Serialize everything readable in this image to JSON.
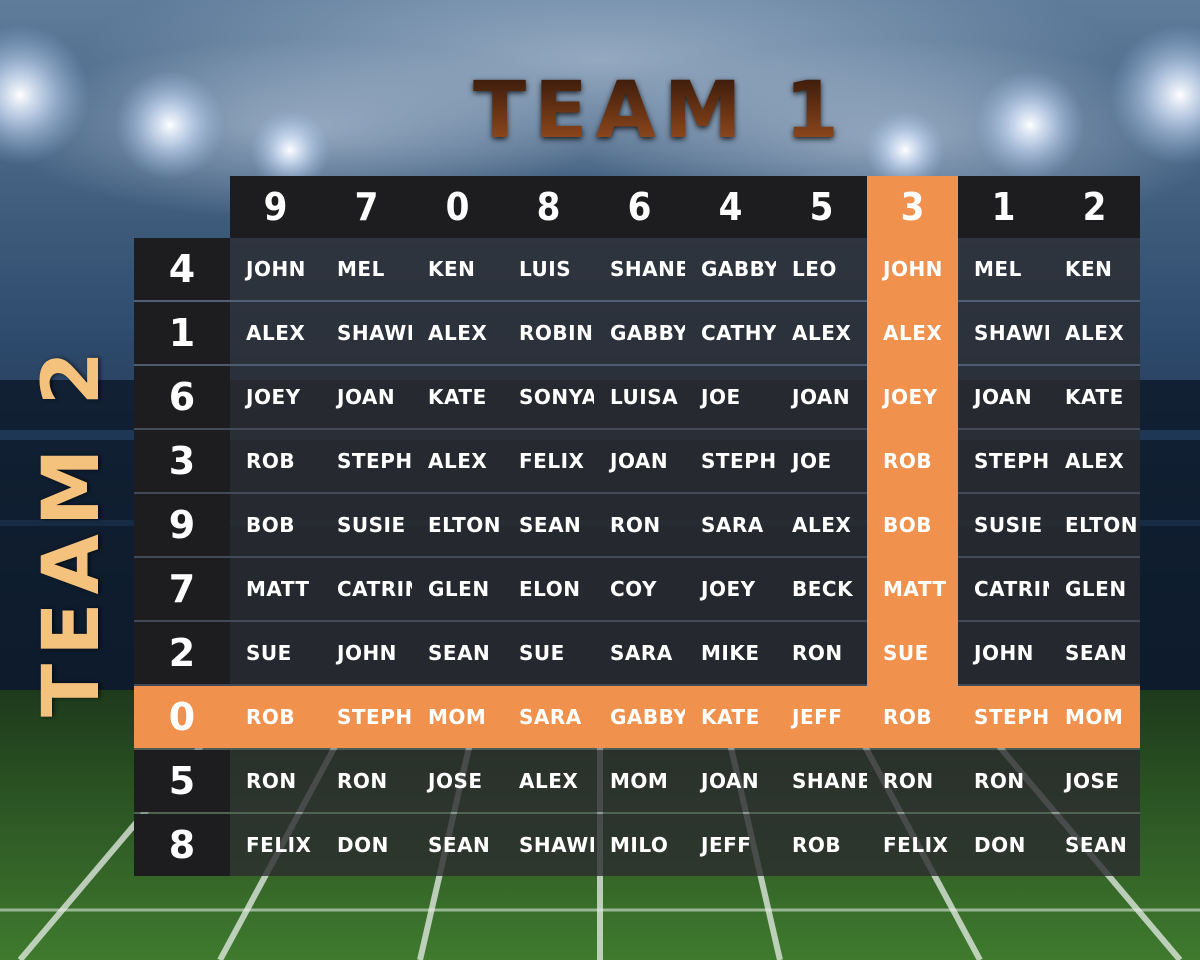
{
  "titles": {
    "team1": "TEAM 1",
    "team2": "TEAM 2"
  },
  "colors": {
    "highlight": "#f0914d",
    "header_bg": "#1d1d1f",
    "cell_bg": "#2c2c30",
    "team1": "#6e3615",
    "team2": "#f5c27e"
  },
  "columns": [
    "9",
    "7",
    "0",
    "8",
    "6",
    "4",
    "5",
    "3",
    "1",
    "2"
  ],
  "highlight_column_index": 7,
  "highlight_row_index": 7,
  "rows": [
    {
      "label": "4",
      "cells": [
        "JOHN",
        "MEL",
        "KEN",
        "LUIS",
        "SHANE",
        "GABBY",
        "LEO",
        "JOHN",
        "MEL",
        "KEN"
      ]
    },
    {
      "label": "1",
      "cells": [
        "ALEX",
        "SHAWN",
        "ALEX",
        "ROBIN",
        "GABBY",
        "CATHY",
        "ALEX",
        "ALEX",
        "SHAWN",
        "ALEX"
      ]
    },
    {
      "label": "6",
      "cells": [
        "JOEY",
        "JOAN",
        "KATE",
        "SONYA",
        "LUISA",
        "JOE",
        "JOAN",
        "JOEY",
        "JOAN",
        "KATE"
      ]
    },
    {
      "label": "3",
      "cells": [
        "ROB",
        "STEPH",
        "ALEX",
        "FELIX",
        "JOAN",
        "STEPH",
        "JOE",
        "ROB",
        "STEPH",
        "ALEX"
      ]
    },
    {
      "label": "9",
      "cells": [
        "BOB",
        "SUSIE",
        "ELTON",
        "SEAN",
        "RON",
        "SARA",
        "ALEX",
        "BOB",
        "SUSIE",
        "ELTON"
      ]
    },
    {
      "label": "7",
      "cells": [
        "MATT",
        "CATRIN",
        "GLEN",
        "ELON",
        "COY",
        "JOEY",
        "BECK",
        "MATT",
        "CATRIN",
        "GLEN"
      ]
    },
    {
      "label": "2",
      "cells": [
        "SUE",
        "JOHN",
        "SEAN",
        "SUE",
        "SARA",
        "MIKE",
        "RON",
        "SUE",
        "JOHN",
        "SEAN"
      ]
    },
    {
      "label": "0",
      "cells": [
        "ROB",
        "STEPH",
        "MOM",
        "SARA",
        "GABBY",
        "KATE",
        "JEFF",
        "ROB",
        "STEPH",
        "MOM"
      ]
    },
    {
      "label": "5",
      "cells": [
        "RON",
        "RON",
        "JOSE",
        "ALEX",
        "MOM",
        "JOAN",
        "SHANE",
        "RON",
        "RON",
        "JOSE"
      ]
    },
    {
      "label": "8",
      "cells": [
        "FELIX",
        "DON",
        "SEAN",
        "SHAWN",
        "MILO",
        "JEFF",
        "ROB",
        "FELIX",
        "DON",
        "SEAN"
      ]
    }
  ]
}
